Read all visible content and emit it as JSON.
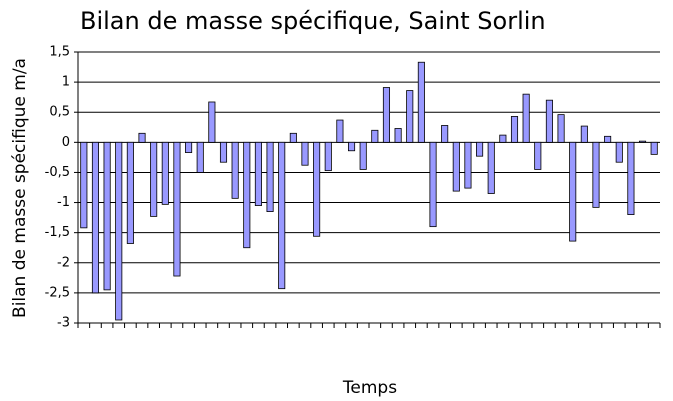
{
  "chart_data": {
    "type": "bar",
    "title": "Bilan de masse spécifique, Saint Sorlin",
    "x_label": "Temps",
    "y_label": "Bilan de masse spécifique m/a",
    "categories": [
      null,
      null,
      null,
      null,
      null,
      null,
      null,
      null,
      null,
      null,
      null,
      null,
      null,
      null,
      null,
      null,
      null,
      null,
      null,
      null,
      null,
      null,
      null,
      null,
      null,
      null,
      null,
      null,
      null,
      null,
      null,
      null,
      null,
      null,
      null,
      null,
      null,
      null,
      null,
      null,
      null,
      null,
      null,
      null,
      null,
      null,
      null,
      null,
      null,
      null
    ],
    "values": [
      -1.42,
      -2.5,
      -2.45,
      -2.95,
      -1.68,
      0.15,
      -1.23,
      -1.03,
      -2.22,
      -0.17,
      -0.5,
      0.67,
      -0.33,
      -0.93,
      -1.75,
      -1.05,
      -1.15,
      -2.43,
      0.15,
      -0.38,
      -1.56,
      -0.47,
      0.37,
      -0.14,
      -0.45,
      0.2,
      0.91,
      0.23,
      0.86,
      1.33,
      -1.4,
      0.28,
      -0.81,
      -0.76,
      -0.23,
      -0.85,
      0.12,
      0.43,
      0.8,
      -0.45,
      0.7,
      0.46,
      -1.64,
      0.27,
      -1.08,
      0.1,
      -0.33,
      -1.2,
      0.02,
      -0.2
    ],
    "color": "#9999ff",
    "ylim": [
      -3,
      1.5
    ],
    "yticks": [
      {
        "value": 1.5,
        "label": "1,5"
      },
      1,
      {
        "value": 0.5,
        "label": "0,5"
      },
      0,
      {
        "value": -0.5,
        "label": "-0,5"
      },
      -1,
      {
        "value": -1.5,
        "label": "-1,5"
      },
      -2,
      {
        "value": -2.5,
        "label": "-2,5"
      },
      -3
    ],
    "grid": true
  }
}
